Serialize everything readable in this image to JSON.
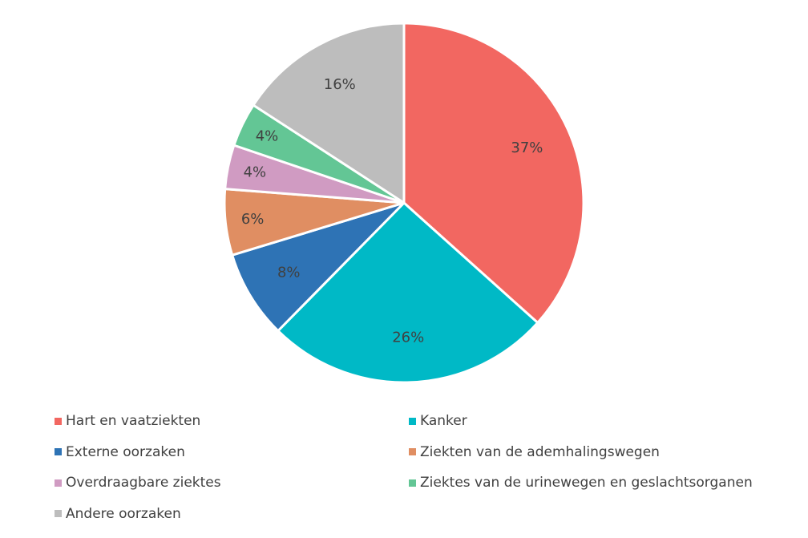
{
  "chart_data": {
    "type": "pie",
    "title": "",
    "categories": [
      "Hart en vaatziekten",
      "Kanker",
      "Externe oorzaken",
      "Ziekten van de ademhalingswegen",
      "Overdraagbare ziektes",
      "Ziektes van de urinewegen en geslachtsorganen",
      "Andere oorzaken"
    ],
    "values": [
      37,
      26,
      8,
      6,
      4,
      4,
      16
    ],
    "labels": [
      "37%",
      "26%",
      "8%",
      "6%",
      "4%",
      "4%",
      "16%"
    ],
    "colors": [
      "#f26761",
      "#00b9c6",
      "#2e73b5",
      "#e08e62",
      "#d09bc2",
      "#63c695",
      "#bdbdbd"
    ],
    "legend_position": "bottom"
  }
}
